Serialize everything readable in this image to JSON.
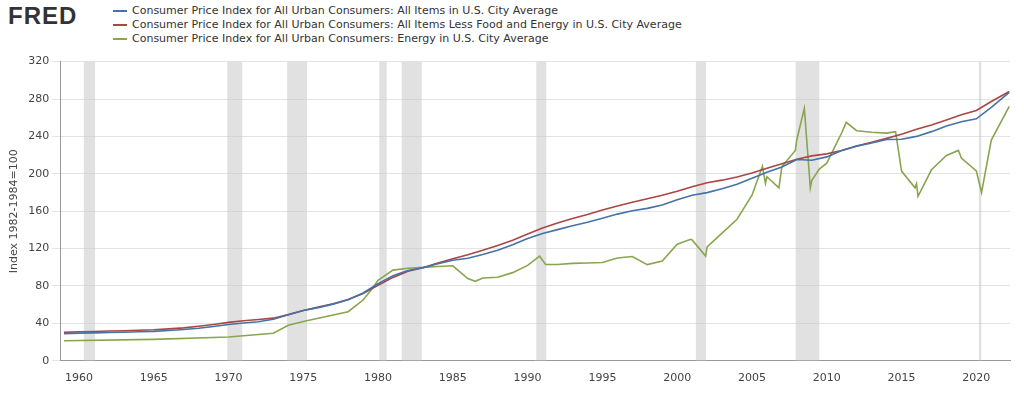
{
  "chart_data": {
    "type": "line",
    "annotations": [
      "FRED"
    ],
    "legend": "top",
    "grid": "y",
    "y_label": "Index 1982-1984=100",
    "xlim": [
      1958.75,
      2022.25
    ],
    "xticks": [
      1960,
      1965,
      1970,
      1975,
      1980,
      1985,
      1990,
      1995,
      2000,
      2005,
      2010,
      2015,
      2020
    ],
    "ylim": [
      0,
      320
    ],
    "yticks": [
      0,
      40,
      80,
      120,
      160,
      200,
      240,
      280,
      320
    ],
    "recessions": [
      [
        1960.33,
        1961.08
      ],
      [
        1969.92,
        1970.92
      ],
      [
        1973.92,
        1975.25
      ],
      [
        1980.08,
        1980.58
      ],
      [
        1981.58,
        1982.92
      ],
      [
        1990.58,
        1991.25
      ],
      [
        2001.25,
        2001.92
      ],
      [
        2007.92,
        2009.5
      ],
      [
        2020.17,
        2020.33
      ]
    ],
    "series": [
      {
        "name": "Consumer Price Index for All Urban Consumers: All Items in U.S. City Average",
        "color": "#4572a7",
        "x": [
          1959,
          1960,
          1961,
          1962,
          1963,
          1964,
          1965,
          1966,
          1967,
          1968,
          1969,
          1970,
          1971,
          1972,
          1973,
          1974,
          1975,
          1976,
          1977,
          1978,
          1979,
          1980,
          1981,
          1982,
          1983,
          1984,
          1985,
          1986,
          1987,
          1988,
          1989,
          1990,
          1991,
          1992,
          1993,
          1994,
          1995,
          1996,
          1997,
          1998,
          1999,
          2000,
          2001,
          2002,
          2003,
          2004,
          2005,
          2006,
          2007,
          2008,
          2009,
          2010,
          2011,
          2012,
          2013,
          2014,
          2015,
          2016,
          2017,
          2018,
          2019,
          2020,
          2021,
          2022.2
        ],
        "values": [
          29.1,
          29.6,
          29.9,
          30.2,
          30.6,
          31.0,
          31.5,
          32.4,
          33.4,
          34.8,
          36.7,
          38.8,
          40.5,
          41.8,
          44.4,
          49.3,
          53.8,
          56.9,
          60.6,
          65.2,
          72.6,
          82.4,
          90.9,
          96.5,
          99.6,
          103.9,
          107.6,
          109.6,
          113.6,
          118.3,
          124.0,
          130.7,
          136.2,
          140.3,
          144.5,
          148.2,
          152.4,
          156.9,
          160.5,
          163.0,
          166.6,
          172.2,
          177.1,
          179.9,
          184.0,
          188.9,
          195.3,
          201.6,
          207.3,
          215.3,
          214.5,
          218.1,
          224.9,
          229.6,
          233.0,
          236.7,
          237.0,
          240.0,
          245.1,
          251.1,
          255.7,
          258.8,
          271.0,
          287.0
        ]
      },
      {
        "name": "Consumer Price Index for All Urban Consumers: All Items Less Food and Energy in U.S. City Average",
        "color": "#aa4643",
        "x": [
          1959,
          1960,
          1961,
          1962,
          1963,
          1964,
          1965,
          1966,
          1967,
          1968,
          1969,
          1970,
          1971,
          1972,
          1973,
          1974,
          1975,
          1976,
          1977,
          1978,
          1979,
          1980,
          1981,
          1982,
          1983,
          1984,
          1985,
          1986,
          1987,
          1988,
          1989,
          1990,
          1991,
          1992,
          1993,
          1994,
          1995,
          1996,
          1997,
          1998,
          1999,
          2000,
          2001,
          2002,
          2003,
          2004,
          2005,
          2006,
          2007,
          2008,
          2009,
          2010,
          2011,
          2012,
          2013,
          2014,
          2015,
          2016,
          2017,
          2018,
          2019,
          2020,
          2021,
          2022.2
        ],
        "values": [
          30.4,
          31.0,
          31.4,
          31.8,
          32.2,
          32.7,
          33.2,
          34.1,
          35.2,
          36.9,
          38.9,
          41.1,
          42.9,
          44.2,
          45.6,
          49.4,
          53.9,
          57.4,
          61.0,
          65.5,
          71.9,
          80.8,
          89.2,
          95.8,
          99.6,
          104.6,
          109.1,
          113.5,
          118.2,
          123.4,
          129.0,
          135.5,
          142.1,
          147.3,
          152.2,
          156.5,
          161.2,
          165.6,
          169.5,
          173.4,
          177.0,
          181.3,
          186.1,
          190.5,
          193.2,
          196.6,
          200.9,
          205.9,
          210.7,
          215.6,
          219.2,
          221.3,
          225.0,
          229.8,
          233.8,
          237.9,
          242.2,
          247.6,
          252.2,
          257.6,
          263.2,
          267.7,
          277.3,
          288.0
        ]
      },
      {
        "name": "Consumer Price Index for All Urban Consumers: Energy in U.S. City Average",
        "color": "#89a54e",
        "x": [
          1959,
          1965,
          1970,
          1973,
          1974,
          1975,
          1977,
          1978,
          1979,
          1979.5,
          1980,
          1981,
          1982,
          1983,
          1984,
          1985,
          1986,
          1986.5,
          1987,
          1988,
          1989,
          1990,
          1990.8,
          1991.2,
          1992,
          1993,
          1994,
          1995,
          1996,
          1997,
          1998,
          1999,
          2000,
          2000.9,
          2001,
          2001.9,
          2002,
          2003,
          2004,
          2005,
          2005.7,
          2005.9,
          2006,
          2006.8,
          2007,
          2007.9,
          2008,
          2008.5,
          2008.9,
          2009,
          2009.5,
          2010,
          2011,
          2011.3,
          2012,
          2013,
          2014,
          2014.6,
          2015,
          2015.9,
          2016,
          2016.1,
          2017,
          2018,
          2018.8,
          2019,
          2020,
          2020.35,
          2021,
          2022.2
        ],
        "values": [
          21.5,
          22.9,
          25.5,
          29.4,
          38.0,
          42.0,
          49.0,
          52.5,
          65.0,
          75.0,
          86.0,
          97.0,
          99.0,
          99.9,
          100.9,
          101.6,
          88.0,
          85.0,
          88.6,
          89.3,
          94.3,
          102.0,
          112.0,
          103.0,
          103.0,
          104.2,
          104.6,
          105.2,
          110.0,
          111.5,
          102.9,
          106.6,
          124.6,
          130.0,
          129.3,
          112.0,
          121.7,
          136.5,
          151.4,
          177.1,
          208.0,
          190.0,
          196.9,
          185.0,
          207.7,
          225.0,
          236.7,
          270.0,
          185.0,
          193.1,
          205.0,
          211.4,
          243.9,
          255.0,
          246.1,
          244.4,
          243.5,
          245.0,
          202.9,
          185.0,
          189.5,
          176.0,
          204.3,
          219.6,
          225.0,
          216.9,
          203.0,
          180.0,
          236.0,
          272.0
        ]
      }
    ]
  }
}
